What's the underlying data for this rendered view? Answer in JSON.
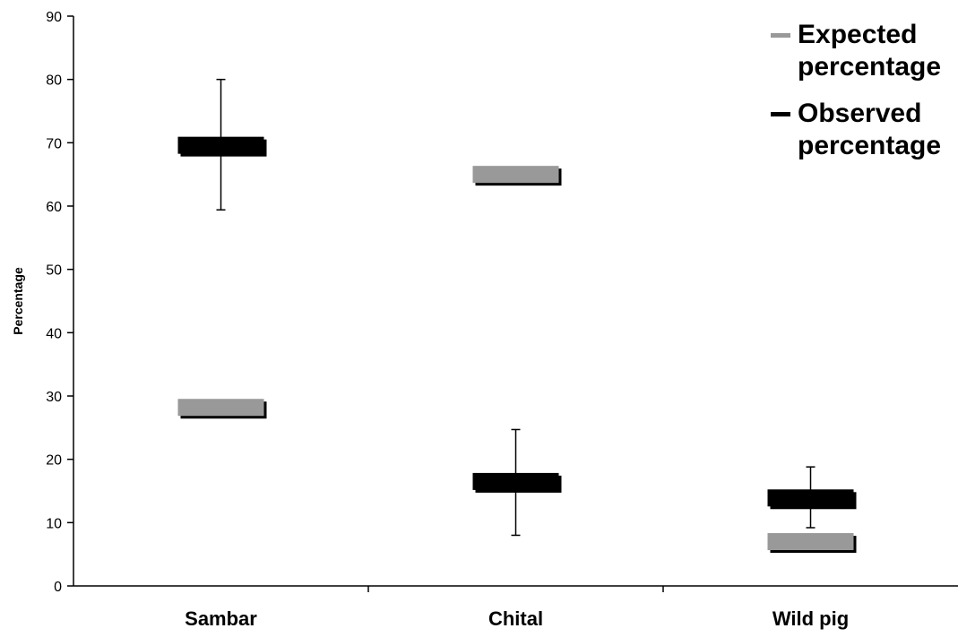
{
  "chart_data": {
    "type": "box",
    "ylabel": "Percentage",
    "xlabel": "",
    "ylim": [
      0,
      90
    ],
    "yticks": [
      0,
      10,
      20,
      30,
      40,
      50,
      60,
      70,
      80,
      90
    ],
    "categories": [
      "Sambar",
      "Chital",
      "Wild pig"
    ],
    "series": [
      {
        "name": "Expected percentage",
        "color": "#999999",
        "values": [
          28.2,
          65.0,
          7.0
        ]
      },
      {
        "name": "Observed percentage",
        "color": "#000000",
        "values": [
          69.6,
          16.5,
          13.9
        ],
        "error_low": [
          59.4,
          8.0,
          9.2
        ],
        "error_high": [
          80.0,
          24.7,
          18.8
        ]
      }
    ],
    "legend_position": "top-right",
    "legend_labels": [
      [
        "Expected",
        "percentage"
      ],
      [
        "Observed",
        "percentage"
      ]
    ]
  }
}
